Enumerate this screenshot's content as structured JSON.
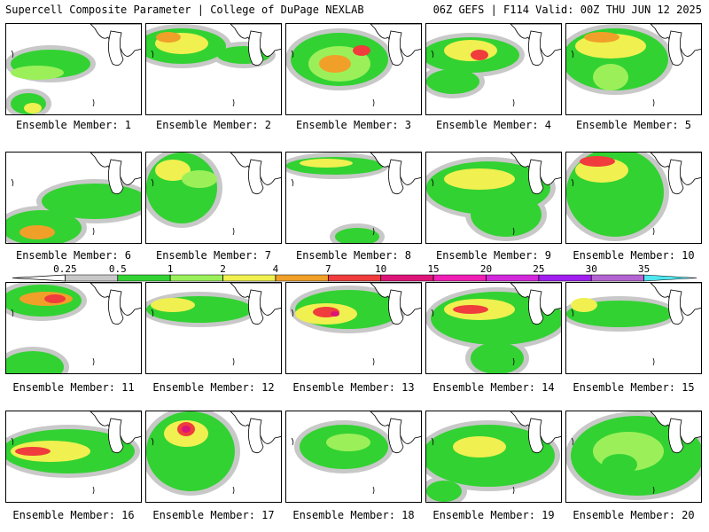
{
  "header": {
    "title": "Supercell Composite Parameter | College of DuPage NEXLAB",
    "run_info": "06Z GEFS | F114 Valid: 00Z THU JUN 12 2025"
  },
  "member_label_prefix": "Ensemble Member:",
  "members": [
    {
      "number": "1"
    },
    {
      "number": "2"
    },
    {
      "number": "3"
    },
    {
      "number": "4"
    },
    {
      "number": "5"
    },
    {
      "number": "6"
    },
    {
      "number": "7"
    },
    {
      "number": "8"
    },
    {
      "number": "9"
    },
    {
      "number": "10"
    },
    {
      "number": "11"
    },
    {
      "number": "12"
    },
    {
      "number": "13"
    },
    {
      "number": "14"
    },
    {
      "number": "15"
    },
    {
      "number": "16"
    },
    {
      "number": "17"
    },
    {
      "number": "18"
    },
    {
      "number": "19"
    },
    {
      "number": "20"
    }
  ],
  "legend": {
    "ticks": [
      "0.25",
      "0.5",
      "1",
      "2",
      "4",
      "7",
      "10",
      "15",
      "20",
      "25",
      "30",
      "35"
    ],
    "colors": [
      "#c8c8c8",
      "#32d232",
      "#9bf05a",
      "#f0f050",
      "#f0a028",
      "#f03c3c",
      "#dc1478",
      "#f01eb4",
      "#d228dc",
      "#a01ef0",
      "#b464d2",
      "#50e6f0"
    ]
  },
  "colors": {
    "land": "#ffffff",
    "border": "#000000"
  }
}
